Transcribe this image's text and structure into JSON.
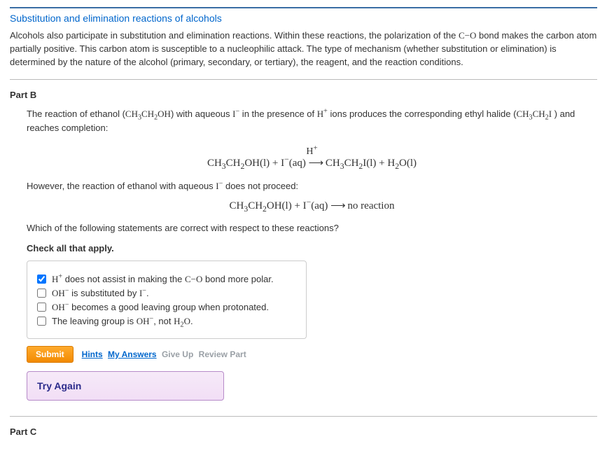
{
  "header": {
    "title": "Substitution and elimination reactions of alcohols",
    "intro_html": "Alcohols also participate in substitution and elimination reactions. Within these reactions, the polarization of the <span class='tn'>C−O</span> bond makes the carbon atom partially positive. This carbon atom is susceptible to a nucleophilic attack. The type of mechanism (whether substitution or elimination) is determined by the nature of the alcohol (primary, secondary, or tertiary), the reagent, and the reaction conditions."
  },
  "partB": {
    "label": "Part B",
    "q_html_1": "The reaction of ethanol (<span class='tn'>CH<sub>3</sub>CH<sub>2</sub>OH</span>) with aqueous <span class='tn'>I<sup>−</sup></span> in the presence of <span class='tn'>H<sup>+</sup></span> ions produces the corresponding ethyl halide (<span class='tn'>CH<sub>3</sub>CH<sub>2</sub>I</span> ) and reaches completion:",
    "eq1_top_html": "H<sup>+</sup>",
    "eq1_html": "CH<sub>3</sub>CH<sub>2</sub>OH(l) + I<sup>−</sup>(aq) <span class='arrow'>⟶</span> CH<sub>3</sub>CH<sub>2</sub>I(l) + H<sub>2</sub>O(l)",
    "q_html_2": "However, the reaction of ethanol with aqueous <span class='tn'>I<sup>−</sup></span> does not proceed:",
    "eq2_html": "CH<sub>3</sub>CH<sub>2</sub>OH(l) + I<sup>−</sup>(aq) <span class='arrow'>⟶</span> no reaction",
    "q_html_3": "Which of the following statements are correct with respect to these reactions?",
    "check_instruction": "Check all that apply.",
    "options": [
      {
        "id": "opt-1",
        "checked": true,
        "label_html": "<span class='tn'>H<sup>+</sup></span> does not assist in making the <span class='tn'>C−O</span> bond more polar."
      },
      {
        "id": "opt-2",
        "checked": false,
        "label_html": "<span class='tn'>OH<sup>−</sup></span> is substituted by <span class='tn'>I<sup>−</sup></span>."
      },
      {
        "id": "opt-3",
        "checked": false,
        "label_html": "<span class='tn'>OH<sup>−</sup></span> becomes a good leaving group when protonated."
      },
      {
        "id": "opt-4",
        "checked": false,
        "label_html": "The leaving group is <span class='tn'>OH<sup>−</sup></span>, not <span class='tn'>H<sub>2</sub>O</span>."
      }
    ],
    "buttons": {
      "submit": "Submit",
      "hints": "Hints",
      "my_answers": "My Answers",
      "give_up": "Give Up",
      "review": "Review Part"
    },
    "feedback": "Try Again"
  },
  "partC": {
    "label": "Part C"
  }
}
